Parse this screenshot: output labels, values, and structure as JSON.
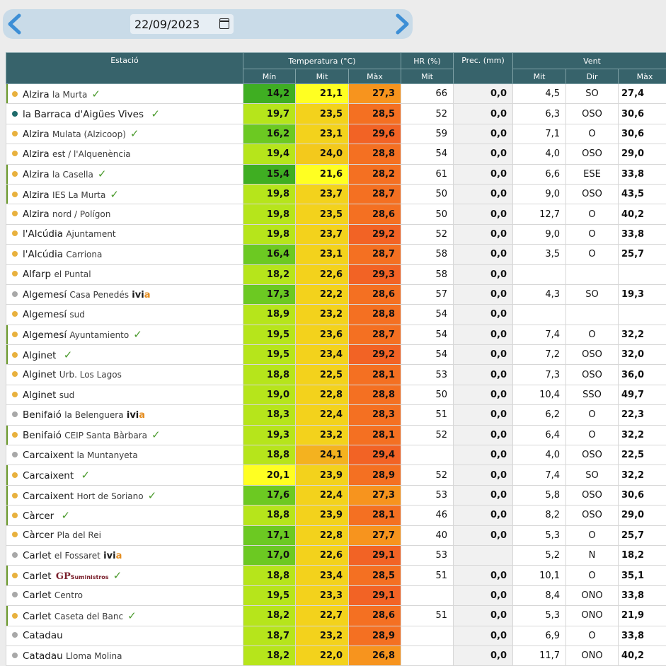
{
  "date_value": "22/09/2023",
  "headers": {
    "station": "Estació",
    "temperature": "Temperatura (°C)",
    "hr": "HR (%)",
    "prec": "Prec. (mm)",
    "wind": "Vent",
    "min": "Mín",
    "mit": "Mit",
    "max": "Màx",
    "hr_mit": "Mit",
    "wind_mit": "Mit",
    "wind_dir": "Dir",
    "wind_max": "Màx"
  },
  "colors": {
    "dot_yellow": "#e8b13e",
    "dot_gray": "#a8a8a8",
    "dot_teal": "#1f6b6b",
    "check": "#4a9a2c"
  },
  "rows": [
    {
      "city": "Alzira",
      "sub": "la Murta",
      "dot": "#e8b13e",
      "check": true,
      "mark": true,
      "min": "14,2",
      "mit": "21,1",
      "max": "27,3",
      "hr": "66",
      "prec": "0,0",
      "wmit": "4,5",
      "dir": "SO",
      "wmax": "27,4",
      "cmin": "#3fae22",
      "cmit": "#ffff22",
      "cmax": "#f7941e"
    },
    {
      "city": "la Barraca d'Aigües Vives",
      "sub": "",
      "dot": "#1f6b6b",
      "check": true,
      "mark": false,
      "min": "19,7",
      "mit": "23,5",
      "max": "28,5",
      "hr": "52",
      "prec": "0,0",
      "wmit": "6,3",
      "dir": "OSO",
      "wmax": "30,6",
      "cmin": "#b6e51b",
      "cmit": "#f3d21c",
      "cmax": "#f47022"
    },
    {
      "city": "Alzira",
      "sub": "Mulata (Alzicoop)",
      "dot": "#e8b13e",
      "check": true,
      "mark": false,
      "min": "16,2",
      "mit": "23,1",
      "max": "29,6",
      "hr": "59",
      "prec": "0,0",
      "wmit": "7,1",
      "dir": "O",
      "wmax": "30,6",
      "cmin": "#6cc922",
      "cmit": "#f3d21c",
      "cmax": "#f26325"
    },
    {
      "city": "Alzira",
      "sub": "est / l'Alquenència",
      "dot": "#e8b13e",
      "check": false,
      "mark": false,
      "min": "19,4",
      "mit": "24,0",
      "max": "28,8",
      "hr": "54",
      "prec": "0,0",
      "wmit": "4,0",
      "dir": "OSO",
      "wmax": "29,0",
      "cmin": "#b6e51b",
      "cmit": "#f3c91c",
      "cmax": "#f47022"
    },
    {
      "city": "Alzira",
      "sub": "la Casella",
      "dot": "#e8b13e",
      "check": true,
      "mark": true,
      "min": "15,4",
      "mit": "21,6",
      "max": "28,2",
      "hr": "61",
      "prec": "0,0",
      "wmit": "6,6",
      "dir": "ESE",
      "wmax": "33,8",
      "cmin": "#3fae22",
      "cmit": "#ffff22",
      "cmax": "#f47022"
    },
    {
      "city": "Alzira",
      "sub": "IES La Murta",
      "dot": "#e8b13e",
      "check": true,
      "mark": true,
      "min": "19,8",
      "mit": "23,7",
      "max": "28,7",
      "hr": "50",
      "prec": "0,0",
      "wmit": "9,0",
      "dir": "OSO",
      "wmax": "43,5",
      "cmin": "#b6e51b",
      "cmit": "#f3d21c",
      "cmax": "#f47022"
    },
    {
      "city": "Alzira",
      "sub": "nord / Polígon",
      "dot": "#e8b13e",
      "check": false,
      "mark": false,
      "min": "19,8",
      "mit": "23,5",
      "max": "28,6",
      "hr": "50",
      "prec": "0,0",
      "wmit": "12,7",
      "dir": "O",
      "wmax": "40,2",
      "cmin": "#b6e51b",
      "cmit": "#f3d21c",
      "cmax": "#f47022"
    },
    {
      "city": "l'Alcúdia",
      "sub": "Ajuntament",
      "dot": "#e8b13e",
      "check": false,
      "mark": false,
      "min": "19,8",
      "mit": "23,7",
      "max": "29,2",
      "hr": "52",
      "prec": "0,0",
      "wmit": "9,0",
      "dir": "O",
      "wmax": "33,8",
      "cmin": "#b6e51b",
      "cmit": "#f3d21c",
      "cmax": "#f26325"
    },
    {
      "city": "l'Alcúdia",
      "sub": "Carriona",
      "dot": "#e8b13e",
      "check": false,
      "mark": false,
      "min": "16,4",
      "mit": "23,1",
      "max": "28,7",
      "hr": "58",
      "prec": "0,0",
      "wmit": "3,5",
      "dir": "O",
      "wmax": "25,7",
      "cmin": "#6cc922",
      "cmit": "#f3d21c",
      "cmax": "#f47022"
    },
    {
      "city": "Alfarp",
      "sub": "el Puntal",
      "dot": "#e8b13e",
      "check": false,
      "mark": false,
      "min": "18,2",
      "mit": "22,6",
      "max": "29,3",
      "hr": "58",
      "prec": "0,0",
      "wmit": "",
      "dir": "",
      "wmax": "",
      "cmin": "#b6e51b",
      "cmit": "#f3d21c",
      "cmax": "#f26325"
    },
    {
      "city": "Algemesí",
      "sub": "Casa Penedés",
      "dot": "#a8a8a8",
      "ivia": true,
      "check": false,
      "mark": false,
      "min": "17,3",
      "mit": "22,2",
      "max": "28,6",
      "hr": "57",
      "prec": "0,0",
      "wmit": "4,3",
      "dir": "SO",
      "wmax": "19,3",
      "cmin": "#6cc922",
      "cmit": "#f3d21c",
      "cmax": "#f47022"
    },
    {
      "city": "Algemesí",
      "sub": "sud",
      "dot": "#e8b13e",
      "check": false,
      "mark": false,
      "min": "18,9",
      "mit": "23,2",
      "max": "28,8",
      "hr": "54",
      "prec": "0,0",
      "wmit": "",
      "dir": "",
      "wmax": "",
      "cmin": "#b6e51b",
      "cmit": "#f3d21c",
      "cmax": "#f47022"
    },
    {
      "city": "Algemesí",
      "sub": "Ayuntamiento",
      "dot": "#e8b13e",
      "check": true,
      "mark": true,
      "min": "19,5",
      "mit": "23,6",
      "max": "28,7",
      "hr": "54",
      "prec": "0,0",
      "wmit": "7,4",
      "dir": "O",
      "wmax": "32,2",
      "cmin": "#b6e51b",
      "cmit": "#f3d21c",
      "cmax": "#f47022"
    },
    {
      "city": "Alginet",
      "sub": "",
      "dot": "#e8b13e",
      "check": true,
      "mark": true,
      "min": "19,5",
      "mit": "23,4",
      "max": "29,2",
      "hr": "54",
      "prec": "0,0",
      "wmit": "7,2",
      "dir": "OSO",
      "wmax": "32,0",
      "cmin": "#b6e51b",
      "cmit": "#f3d21c",
      "cmax": "#f26325"
    },
    {
      "city": "Alginet",
      "sub": "Urb. Los Lagos",
      "dot": "#e8b13e",
      "check": false,
      "mark": false,
      "min": "18,8",
      "mit": "22,5",
      "max": "28,1",
      "hr": "53",
      "prec": "0,0",
      "wmit": "7,3",
      "dir": "OSO",
      "wmax": "36,0",
      "cmin": "#b6e51b",
      "cmit": "#f3d21c",
      "cmax": "#f47022"
    },
    {
      "city": "Alginet",
      "sub": "sud",
      "dot": "#e8b13e",
      "check": false,
      "mark": false,
      "min": "19,0",
      "mit": "22,8",
      "max": "28,8",
      "hr": "50",
      "prec": "0,0",
      "wmit": "10,4",
      "dir": "SSO",
      "wmax": "49,7",
      "cmin": "#b6e51b",
      "cmit": "#f3d21c",
      "cmax": "#f47022"
    },
    {
      "city": "Benifaió",
      "sub": "la Belenguera",
      "dot": "#a8a8a8",
      "ivia": true,
      "check": false,
      "mark": false,
      "min": "18,3",
      "mit": "22,4",
      "max": "28,3",
      "hr": "51",
      "prec": "0,0",
      "wmit": "6,2",
      "dir": "O",
      "wmax": "22,3",
      "cmin": "#b6e51b",
      "cmit": "#f3d21c",
      "cmax": "#f47022"
    },
    {
      "city": "Benifaió",
      "sub": "CEIP Santa Bàrbara",
      "dot": "#e8b13e",
      "check": true,
      "mark": true,
      "min": "19,3",
      "mit": "23,2",
      "max": "28,1",
      "hr": "52",
      "prec": "0,0",
      "wmit": "6,4",
      "dir": "O",
      "wmax": "32,2",
      "cmin": "#b6e51b",
      "cmit": "#f3d21c",
      "cmax": "#f47022"
    },
    {
      "city": "Carcaixent",
      "sub": "la Muntanyeta",
      "dot": "#a8a8a8",
      "check": false,
      "mark": false,
      "min": "18,8",
      "mit": "24,1",
      "max": "29,4",
      "hr": "",
      "prec": "0,0",
      "wmit": "4,0",
      "dir": "OSO",
      "wmax": "22,5",
      "cmin": "#b6e51b",
      "cmit": "#f4b21f",
      "cmax": "#f26325"
    },
    {
      "city": "Carcaixent",
      "sub": "",
      "dot": "#e8b13e",
      "check": true,
      "mark": true,
      "min": "20,1",
      "mit": "23,9",
      "max": "28,9",
      "hr": "52",
      "prec": "0,0",
      "wmit": "7,4",
      "dir": "SO",
      "wmax": "32,2",
      "cmin": "#ffff22",
      "cmit": "#f3d21c",
      "cmax": "#f47022"
    },
    {
      "city": "Carcaixent",
      "sub": "Hort de Soriano",
      "dot": "#e8b13e",
      "check": true,
      "mark": true,
      "min": "17,6",
      "mit": "22,4",
      "max": "27,3",
      "hr": "53",
      "prec": "0,0",
      "wmit": "5,8",
      "dir": "OSO",
      "wmax": "30,6",
      "cmin": "#6cc922",
      "cmit": "#f3d21c",
      "cmax": "#f7941e"
    },
    {
      "city": "Càrcer",
      "sub": "",
      "dot": "#e8b13e",
      "check": true,
      "mark": true,
      "min": "18,8",
      "mit": "23,9",
      "max": "28,1",
      "hr": "46",
      "prec": "0,0",
      "wmit": "8,2",
      "dir": "OSO",
      "wmax": "29,0",
      "cmin": "#b6e51b",
      "cmit": "#f3d21c",
      "cmax": "#f47022"
    },
    {
      "city": "Càrcer",
      "sub": "Pla del Rei",
      "dot": "#e8b13e",
      "check": false,
      "mark": false,
      "min": "17,1",
      "mit": "22,8",
      "max": "27,7",
      "hr": "40",
      "prec": "0,0",
      "wmit": "5,3",
      "dir": "O",
      "wmax": "25,7",
      "cmin": "#6cc922",
      "cmit": "#f3d21c",
      "cmax": "#f7941e"
    },
    {
      "city": "Carlet",
      "sub": "el Fossaret",
      "dot": "#a8a8a8",
      "ivia": true,
      "check": false,
      "mark": false,
      "min": "17,0",
      "mit": "22,6",
      "max": "29,1",
      "hr": "53",
      "prec": "",
      "wmit": "5,2",
      "dir": "N",
      "wmax": "18,2",
      "cmin": "#6cc922",
      "cmit": "#f3d21c",
      "cmax": "#f26325"
    },
    {
      "city": "Carlet",
      "sub": "",
      "gp": true,
      "dot": "#e8b13e",
      "check": true,
      "mark": true,
      "min": "18,8",
      "mit": "23,4",
      "max": "28,5",
      "hr": "51",
      "prec": "0,0",
      "wmit": "10,1",
      "dir": "O",
      "wmax": "35,1",
      "cmin": "#b6e51b",
      "cmit": "#f3d21c",
      "cmax": "#f47022"
    },
    {
      "city": "Carlet",
      "sub": "Centro",
      "dot": "#a8a8a8",
      "check": false,
      "mark": false,
      "min": "19,5",
      "mit": "23,3",
      "max": "29,1",
      "hr": "",
      "prec": "0,0",
      "wmit": "8,4",
      "dir": "ONO",
      "wmax": "33,8",
      "cmin": "#b6e51b",
      "cmit": "#f3d21c",
      "cmax": "#f26325"
    },
    {
      "city": "Carlet",
      "sub": "Caseta del Banc",
      "dot": "#e8b13e",
      "check": true,
      "mark": true,
      "min": "18,2",
      "mit": "22,7",
      "max": "28,6",
      "hr": "51",
      "prec": "0,0",
      "wmit": "5,3",
      "dir": "ONO",
      "wmax": "21,9",
      "cmin": "#b6e51b",
      "cmit": "#f3d21c",
      "cmax": "#f47022"
    },
    {
      "city": "Catadau",
      "sub": "",
      "dot": "#a8a8a8",
      "check": false,
      "mark": false,
      "min": "18,7",
      "mit": "23,2",
      "max": "28,9",
      "hr": "",
      "prec": "0,0",
      "wmit": "6,9",
      "dir": "O",
      "wmax": "33,8",
      "cmin": "#b6e51b",
      "cmit": "#f3d21c",
      "cmax": "#f47022"
    },
    {
      "city": "Catadau",
      "sub": "Lloma Molina",
      "dot": "#a8a8a8",
      "check": false,
      "mark": false,
      "min": "18,2",
      "mit": "22,0",
      "max": "26,8",
      "hr": "",
      "prec": "0,0",
      "wmit": "11,7",
      "dir": "ONO",
      "wmax": "40,2",
      "cmin": "#b6e51b",
      "cmit": "#f3d21c",
      "cmax": "#f7941e"
    }
  ],
  "ivia_label": {
    "a": "ivi",
    "b": "a"
  },
  "gp_label": {
    "big": "GP",
    "small": "Suministros"
  }
}
